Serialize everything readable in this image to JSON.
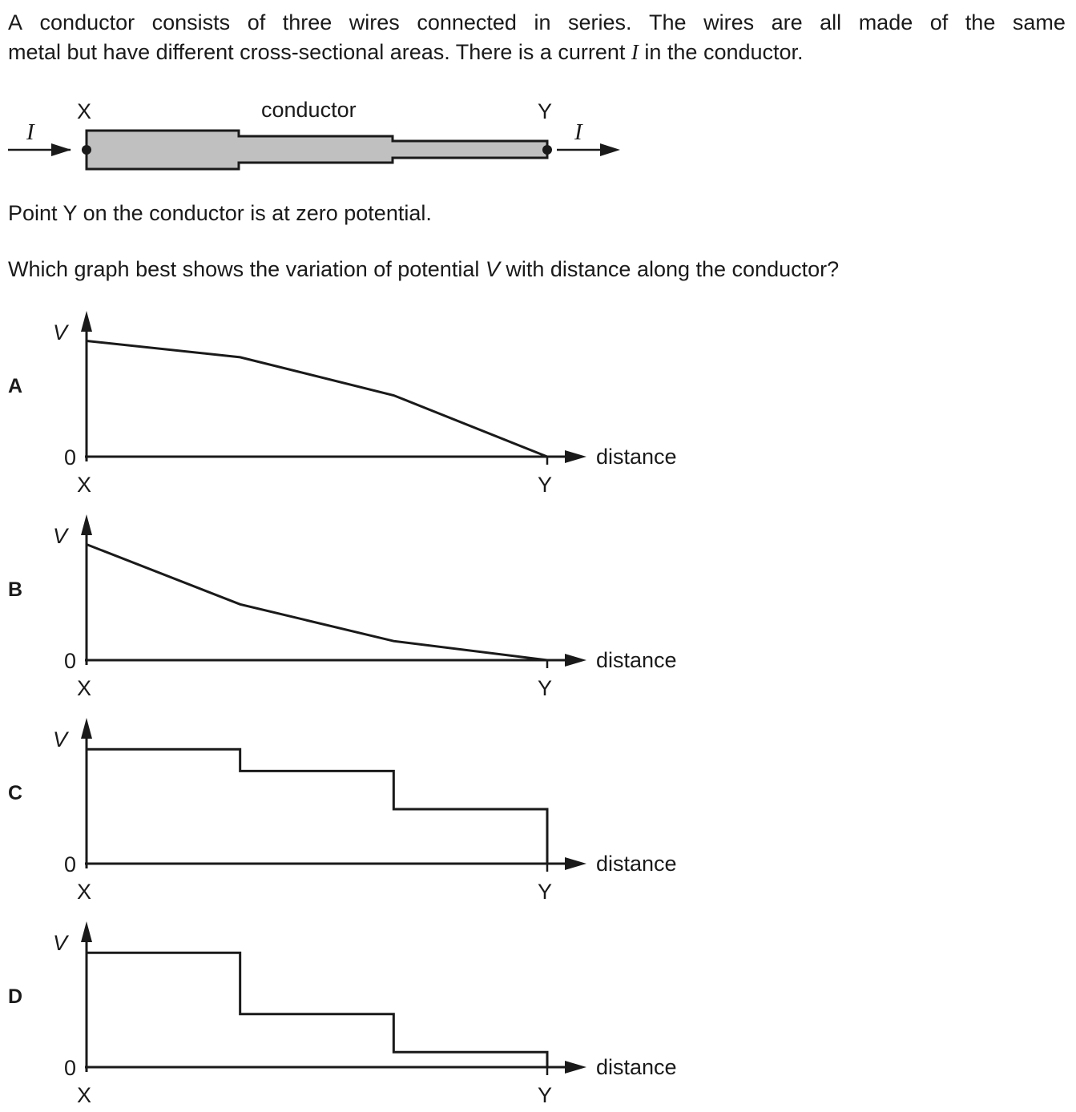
{
  "question": {
    "line1_words": [
      "A",
      "conductor",
      "consists",
      "of",
      "three",
      "wires",
      "connected",
      "in",
      "series.",
      "The",
      "wires",
      "are",
      "all",
      "made",
      "of",
      "the",
      "same"
    ],
    "line2_before": "metal but have different cross-sectional areas. There is a current ",
    "current_symbol": "I",
    "line2_after": " in the conductor.",
    "point_statement": "Point Y on the conductor is at zero potential.",
    "prompt_before": "Which graph best shows the variation of potential ",
    "potential_symbol": "V",
    "prompt_after": " with distance along the conductor?"
  },
  "conductor_figure": {
    "label_x": "X",
    "label_y": "Y",
    "label_conductor": "conductor",
    "current_in": "I",
    "current_out": "I",
    "fill_color": "#c0c0c0"
  },
  "graphs": [
    {
      "option": "A",
      "y_label": "V",
      "origin_label": "0",
      "x_label": "distance",
      "start_label": "X",
      "end_label": "Y",
      "description_type": "piecewise-linear",
      "points": [
        [
          0,
          0.85
        ],
        [
          1,
          0.73
        ],
        [
          2,
          0.45
        ],
        [
          3,
          0
        ]
      ]
    },
    {
      "option": "B",
      "y_label": "V",
      "origin_label": "0",
      "x_label": "distance",
      "start_label": "X",
      "end_label": "Y",
      "description_type": "piecewise-linear",
      "points": [
        [
          0,
          0.85
        ],
        [
          1,
          0.41
        ],
        [
          2,
          0.14
        ],
        [
          3,
          0
        ]
      ]
    },
    {
      "option": "C",
      "y_label": "V",
      "origin_label": "0",
      "x_label": "distance",
      "start_label": "X",
      "end_label": "Y",
      "description_type": "step",
      "levels": [
        0.84,
        0.68,
        0.4
      ],
      "drops_to_zero_at_end": true
    },
    {
      "option": "D",
      "y_label": "V",
      "origin_label": "0",
      "x_label": "distance",
      "start_label": "X",
      "end_label": "Y",
      "description_type": "step",
      "levels": [
        0.84,
        0.39,
        0.11
      ],
      "drops_to_zero_at_end": true
    }
  ]
}
